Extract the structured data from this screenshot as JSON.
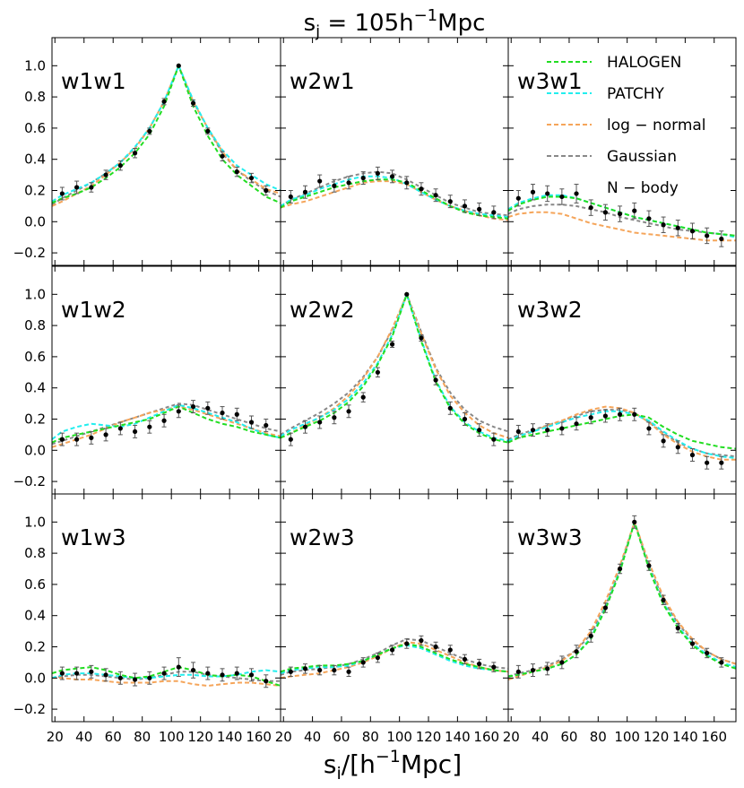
{
  "chart_data": {
    "type": "line",
    "title": "s_j = 105h^{-1}Mpc",
    "title_parts": {
      "s": "s",
      "sub": "j",
      "eq": " = 105h",
      "sup": "−1",
      "unit": "Mpc"
    },
    "xlabel": "s_i/[h^{-1}Mpc]",
    "xlabel_parts": {
      "s": "s",
      "sub": "i",
      "mid": "/[h",
      "sup": "−1",
      "unit": "Mpc]"
    },
    "xlim": [
      18,
      175
    ],
    "ylim": [
      -0.28,
      1.18
    ],
    "xticks": [
      20,
      40,
      60,
      80,
      100,
      120,
      140,
      160
    ],
    "yticks": [
      -0.2,
      0.0,
      0.2,
      0.4,
      0.6,
      0.8,
      1.0
    ],
    "ytick_labels": [
      "−0.2",
      "0.0",
      "0.2",
      "0.4",
      "0.6",
      "0.8",
      "1.0"
    ],
    "grid": false,
    "legend": {
      "placement": "top-right panel",
      "entries": [
        {
          "name": "HALOGEN",
          "color": "#22dd22",
          "style": "dashed"
        },
        {
          "name": "PATCHY",
          "color": "#22eeee",
          "style": "dashed"
        },
        {
          "name": "log − normal",
          "color": "#f5a55a",
          "style": "dashed"
        },
        {
          "name": "Gaussian",
          "color": "#888888",
          "style": "dashed"
        },
        {
          "name": "N − body",
          "color": "#000000",
          "style": "points with error bars"
        }
      ]
    },
    "model_x": [
      18,
      25,
      35,
      45,
      55,
      65,
      75,
      85,
      95,
      105,
      115,
      125,
      135,
      145,
      155,
      165,
      175
    ],
    "points_x": [
      25,
      35,
      45,
      55,
      65,
      75,
      85,
      95,
      105,
      115,
      125,
      135,
      145,
      155,
      165
    ],
    "panels": [
      {
        "label": "w1w1",
        "row": 0,
        "col": 0,
        "models": {
          "HALOGEN": [
            0.12,
            0.15,
            0.18,
            0.22,
            0.28,
            0.35,
            0.44,
            0.56,
            0.74,
            1.0,
            0.74,
            0.55,
            0.4,
            0.3,
            0.23,
            0.16,
            0.12
          ],
          "PATCHY": [
            0.13,
            0.17,
            0.21,
            0.25,
            0.31,
            0.38,
            0.48,
            0.6,
            0.77,
            1.0,
            0.78,
            0.6,
            0.46,
            0.36,
            0.3,
            0.24,
            0.2
          ],
          "log-normal": [
            0.1,
            0.13,
            0.18,
            0.23,
            0.3,
            0.38,
            0.47,
            0.6,
            0.77,
            1.0,
            0.77,
            0.6,
            0.45,
            0.33,
            0.27,
            0.21,
            0.18
          ],
          "Gaussian": [
            0.11,
            0.15,
            0.2,
            0.25,
            0.31,
            0.38,
            0.47,
            0.6,
            0.77,
            1.0,
            0.77,
            0.6,
            0.44,
            0.33,
            0.26,
            0.2,
            0.16
          ]
        },
        "nbody": [
          0.18,
          0.22,
          0.22,
          0.3,
          0.36,
          0.44,
          0.58,
          0.77,
          1.0,
          0.76,
          0.58,
          0.42,
          0.32,
          0.28,
          0.2
        ],
        "err": [
          0.04,
          0.04,
          0.03,
          0.03,
          0.03,
          0.03,
          0.02,
          0.02,
          0.0,
          0.02,
          0.02,
          0.03,
          0.03,
          0.03,
          0.03
        ]
      },
      {
        "label": "w2w1",
        "row": 0,
        "col": 1,
        "models": {
          "HALOGEN": [
            0.09,
            0.13,
            0.16,
            0.19,
            0.22,
            0.24,
            0.26,
            0.27,
            0.27,
            0.25,
            0.2,
            0.15,
            0.1,
            0.06,
            0.04,
            0.03,
            0.02
          ],
          "PATCHY": [
            0.1,
            0.14,
            0.17,
            0.21,
            0.24,
            0.27,
            0.29,
            0.29,
            0.28,
            0.24,
            0.19,
            0.14,
            0.1,
            0.07,
            0.05,
            0.04,
            0.03
          ],
          "log-normal": [
            0.09,
            0.11,
            0.13,
            0.16,
            0.19,
            0.22,
            0.25,
            0.26,
            0.26,
            0.24,
            0.19,
            0.14,
            0.1,
            0.07,
            0.04,
            0.02,
            0.01
          ],
          "Gaussian": [
            0.1,
            0.14,
            0.18,
            0.22,
            0.26,
            0.29,
            0.31,
            0.32,
            0.31,
            0.27,
            0.22,
            0.17,
            0.12,
            0.09,
            0.06,
            0.05,
            0.04
          ]
        },
        "nbody": [
          0.16,
          0.19,
          0.26,
          0.23,
          0.25,
          0.28,
          0.31,
          0.29,
          0.25,
          0.21,
          0.17,
          0.13,
          0.1,
          0.08,
          0.06
        ],
        "err": [
          0.04,
          0.04,
          0.04,
          0.04,
          0.04,
          0.04,
          0.04,
          0.04,
          0.04,
          0.04,
          0.04,
          0.04,
          0.04,
          0.04,
          0.04
        ]
      },
      {
        "label": "w3w1",
        "row": 0,
        "col": 2,
        "models": {
          "HALOGEN": [
            0.07,
            0.11,
            0.14,
            0.16,
            0.16,
            0.15,
            0.12,
            0.09,
            0.06,
            0.03,
            0.01,
            -0.01,
            -0.03,
            -0.05,
            -0.07,
            -0.08,
            -0.09
          ],
          "PATCHY": [
            0.08,
            0.12,
            0.15,
            0.17,
            0.17,
            0.15,
            0.12,
            0.09,
            0.06,
            0.03,
            0.01,
            -0.01,
            -0.03,
            -0.05,
            -0.07,
            -0.08,
            -0.1
          ],
          "log-normal": [
            0.03,
            0.05,
            0.06,
            0.06,
            0.05,
            0.02,
            -0.01,
            -0.03,
            -0.05,
            -0.07,
            -0.08,
            -0.09,
            -0.1,
            -0.11,
            -0.12,
            -0.12,
            -0.12
          ],
          "Gaussian": [
            0.05,
            0.08,
            0.1,
            0.11,
            0.11,
            0.1,
            0.08,
            0.06,
            0.03,
            0.01,
            -0.01,
            -0.03,
            -0.05,
            -0.06,
            -0.07,
            -0.08,
            -0.09
          ]
        },
        "nbody": [
          0.15,
          0.19,
          0.18,
          0.16,
          0.18,
          0.09,
          0.06,
          0.05,
          0.07,
          0.02,
          -0.02,
          -0.04,
          -0.06,
          -0.09,
          -0.11
        ],
        "err": [
          0.05,
          0.05,
          0.05,
          0.05,
          0.06,
          0.05,
          0.05,
          0.05,
          0.05,
          0.05,
          0.05,
          0.05,
          0.05,
          0.05,
          0.05
        ]
      },
      {
        "label": "w1w2",
        "row": 1,
        "col": 0,
        "models": {
          "HALOGEN": [
            0.05,
            0.08,
            0.1,
            0.12,
            0.14,
            0.16,
            0.18,
            0.2,
            0.24,
            0.28,
            0.24,
            0.2,
            0.17,
            0.15,
            0.12,
            0.1,
            0.08
          ],
          "PATCHY": [
            0.07,
            0.12,
            0.15,
            0.17,
            0.16,
            0.15,
            0.17,
            0.21,
            0.25,
            0.29,
            0.27,
            0.24,
            0.21,
            0.18,
            0.14,
            0.1,
            0.08
          ],
          "log-normal": [
            0.02,
            0.04,
            0.07,
            0.1,
            0.14,
            0.18,
            0.21,
            0.24,
            0.26,
            0.28,
            0.26,
            0.23,
            0.2,
            0.17,
            0.14,
            0.11,
            0.09
          ],
          "Gaussian": [
            0.04,
            0.06,
            0.09,
            0.12,
            0.15,
            0.18,
            0.21,
            0.24,
            0.27,
            0.3,
            0.29,
            0.26,
            0.23,
            0.2,
            0.17,
            0.14,
            0.12
          ]
        },
        "nbody": [
          0.07,
          0.07,
          0.08,
          0.1,
          0.14,
          0.12,
          0.15,
          0.19,
          0.25,
          0.28,
          0.27,
          0.24,
          0.23,
          0.18,
          0.16
        ],
        "err": [
          0.04,
          0.04,
          0.04,
          0.04,
          0.04,
          0.04,
          0.04,
          0.04,
          0.04,
          0.04,
          0.04,
          0.04,
          0.04,
          0.04,
          0.04
        ]
      },
      {
        "label": "w2w2",
        "row": 1,
        "col": 1,
        "models": {
          "HALOGEN": [
            0.08,
            0.11,
            0.15,
            0.19,
            0.24,
            0.31,
            0.41,
            0.55,
            0.73,
            1.0,
            0.7,
            0.44,
            0.27,
            0.17,
            0.11,
            0.07,
            0.05
          ],
          "PATCHY": [
            0.09,
            0.13,
            0.17,
            0.21,
            0.26,
            0.33,
            0.43,
            0.56,
            0.74,
            1.0,
            0.71,
            0.45,
            0.28,
            0.18,
            0.12,
            0.08,
            0.06
          ],
          "log-normal": [
            0.08,
            0.11,
            0.16,
            0.21,
            0.27,
            0.35,
            0.46,
            0.6,
            0.78,
            1.0,
            0.75,
            0.52,
            0.35,
            0.24,
            0.16,
            0.11,
            0.08
          ],
          "Gaussian": [
            0.1,
            0.14,
            0.19,
            0.24,
            0.3,
            0.37,
            0.47,
            0.6,
            0.77,
            1.0,
            0.76,
            0.53,
            0.37,
            0.26,
            0.19,
            0.15,
            0.12
          ]
        },
        "nbody": [
          0.07,
          0.15,
          0.18,
          0.21,
          0.25,
          0.34,
          0.5,
          0.68,
          1.0,
          0.72,
          0.45,
          0.27,
          0.2,
          0.13,
          0.07
        ],
        "err": [
          0.04,
          0.04,
          0.04,
          0.04,
          0.04,
          0.03,
          0.03,
          0.02,
          0.0,
          0.02,
          0.03,
          0.04,
          0.04,
          0.04,
          0.04
        ]
      },
      {
        "label": "w3w2",
        "row": 1,
        "col": 2,
        "models": {
          "HALOGEN": [
            0.05,
            0.08,
            0.1,
            0.12,
            0.14,
            0.16,
            0.18,
            0.2,
            0.22,
            0.23,
            0.21,
            0.15,
            0.1,
            0.06,
            0.04,
            0.02,
            0.01
          ],
          "PATCHY": [
            0.06,
            0.09,
            0.12,
            0.15,
            0.18,
            0.21,
            0.23,
            0.25,
            0.25,
            0.23,
            0.19,
            0.12,
            0.06,
            0.01,
            -0.02,
            -0.04,
            -0.05
          ],
          "log-normal": [
            0.05,
            0.08,
            0.12,
            0.16,
            0.19,
            0.23,
            0.26,
            0.28,
            0.27,
            0.24,
            0.18,
            0.1,
            0.04,
            -0.01,
            -0.04,
            -0.06,
            -0.06
          ],
          "Gaussian": [
            0.07,
            0.1,
            0.13,
            0.16,
            0.19,
            0.22,
            0.25,
            0.26,
            0.26,
            0.24,
            0.18,
            0.11,
            0.05,
            0.01,
            -0.02,
            -0.03,
            -0.04
          ]
        },
        "nbody": [
          0.12,
          0.13,
          0.13,
          0.14,
          0.17,
          0.21,
          0.22,
          0.23,
          0.23,
          0.14,
          0.06,
          0.02,
          -0.03,
          -0.08,
          -0.08
        ],
        "err": [
          0.04,
          0.04,
          0.04,
          0.04,
          0.04,
          0.04,
          0.04,
          0.04,
          0.04,
          0.04,
          0.04,
          0.04,
          0.04,
          0.04,
          0.04
        ]
      },
      {
        "label": "w1w3",
        "row": 2,
        "col": 0,
        "models": {
          "HALOGEN": [
            0.03,
            0.05,
            0.06,
            0.07,
            0.05,
            0.02,
            0.0,
            0.01,
            0.04,
            0.07,
            0.05,
            0.02,
            0.01,
            0.02,
            0.01,
            -0.02,
            -0.05
          ],
          "PATCHY": [
            0.0,
            0.02,
            0.03,
            0.03,
            0.02,
            0.01,
            0.0,
            0.0,
            0.01,
            0.02,
            0.02,
            0.01,
            0.01,
            0.02,
            0.04,
            0.05,
            0.04
          ],
          "log-normal": [
            0.0,
            0.0,
            -0.01,
            -0.01,
            -0.02,
            -0.03,
            -0.03,
            -0.03,
            -0.02,
            -0.02,
            -0.04,
            -0.05,
            -0.04,
            -0.03,
            -0.03,
            -0.04,
            -0.05
          ],
          "Gaussian": [
            0.0,
            0.01,
            0.02,
            0.02,
            0.01,
            0.0,
            -0.01,
            0.0,
            0.02,
            0.04,
            0.04,
            0.02,
            0.01,
            0.0,
            -0.01,
            -0.02,
            -0.02
          ]
        },
        "nbody": [
          0.03,
          0.03,
          0.04,
          0.02,
          0.0,
          -0.01,
          0.0,
          0.03,
          0.07,
          0.05,
          0.03,
          0.02,
          0.03,
          0.02,
          -0.02
        ],
        "err": [
          0.04,
          0.04,
          0.04,
          0.04,
          0.04,
          0.04,
          0.04,
          0.04,
          0.06,
          0.05,
          0.04,
          0.04,
          0.04,
          0.04,
          0.04
        ]
      },
      {
        "label": "w2w3",
        "row": 2,
        "col": 1,
        "models": {
          "HALOGEN": [
            0.04,
            0.06,
            0.07,
            0.08,
            0.08,
            0.09,
            0.11,
            0.15,
            0.19,
            0.22,
            0.2,
            0.16,
            0.12,
            0.09,
            0.07,
            0.05,
            0.04
          ],
          "PATCHY": [
            0.03,
            0.05,
            0.06,
            0.07,
            0.07,
            0.08,
            0.11,
            0.15,
            0.19,
            0.21,
            0.19,
            0.15,
            0.11,
            0.08,
            0.06,
            0.05,
            0.04
          ],
          "log-normal": [
            0.0,
            0.01,
            0.02,
            0.03,
            0.05,
            0.07,
            0.1,
            0.14,
            0.19,
            0.23,
            0.22,
            0.18,
            0.14,
            0.1,
            0.07,
            0.05,
            0.04
          ],
          "Gaussian": [
            0.02,
            0.04,
            0.05,
            0.06,
            0.07,
            0.09,
            0.12,
            0.16,
            0.21,
            0.25,
            0.24,
            0.2,
            0.16,
            0.12,
            0.09,
            0.07,
            0.06
          ]
        },
        "nbody": [
          0.04,
          0.06,
          0.05,
          0.05,
          0.04,
          0.1,
          0.13,
          0.18,
          0.22,
          0.24,
          0.2,
          0.18,
          0.12,
          0.09,
          0.07
        ],
        "err": [
          0.03,
          0.03,
          0.03,
          0.03,
          0.03,
          0.03,
          0.03,
          0.03,
          0.03,
          0.03,
          0.03,
          0.03,
          0.03,
          0.03,
          0.03
        ]
      },
      {
        "label": "w3w3",
        "row": 2,
        "col": 2,
        "models": {
          "HALOGEN": [
            0.01,
            0.02,
            0.04,
            0.06,
            0.09,
            0.15,
            0.25,
            0.44,
            0.68,
            1.0,
            0.7,
            0.47,
            0.32,
            0.21,
            0.14,
            0.09,
            0.06
          ],
          "PATCHY": [
            0.01,
            0.02,
            0.04,
            0.06,
            0.09,
            0.15,
            0.26,
            0.45,
            0.69,
            1.0,
            0.71,
            0.48,
            0.33,
            0.22,
            0.15,
            0.1,
            0.07
          ],
          "log-normal": [
            -0.01,
            0.01,
            0.04,
            0.07,
            0.11,
            0.18,
            0.3,
            0.49,
            0.72,
            1.0,
            0.74,
            0.52,
            0.36,
            0.25,
            0.17,
            0.12,
            0.09
          ],
          "Gaussian": [
            0.01,
            0.03,
            0.05,
            0.08,
            0.12,
            0.18,
            0.28,
            0.46,
            0.7,
            1.0,
            0.72,
            0.5,
            0.35,
            0.24,
            0.17,
            0.12,
            0.09
          ]
        },
        "nbody": [
          0.04,
          0.05,
          0.06,
          0.1,
          0.17,
          0.27,
          0.45,
          0.7,
          1.0,
          0.72,
          0.5,
          0.32,
          0.22,
          0.16,
          0.1
        ],
        "err": [
          0.04,
          0.04,
          0.04,
          0.04,
          0.04,
          0.04,
          0.03,
          0.03,
          0.04,
          0.03,
          0.03,
          0.03,
          0.03,
          0.03,
          0.03
        ]
      }
    ]
  }
}
